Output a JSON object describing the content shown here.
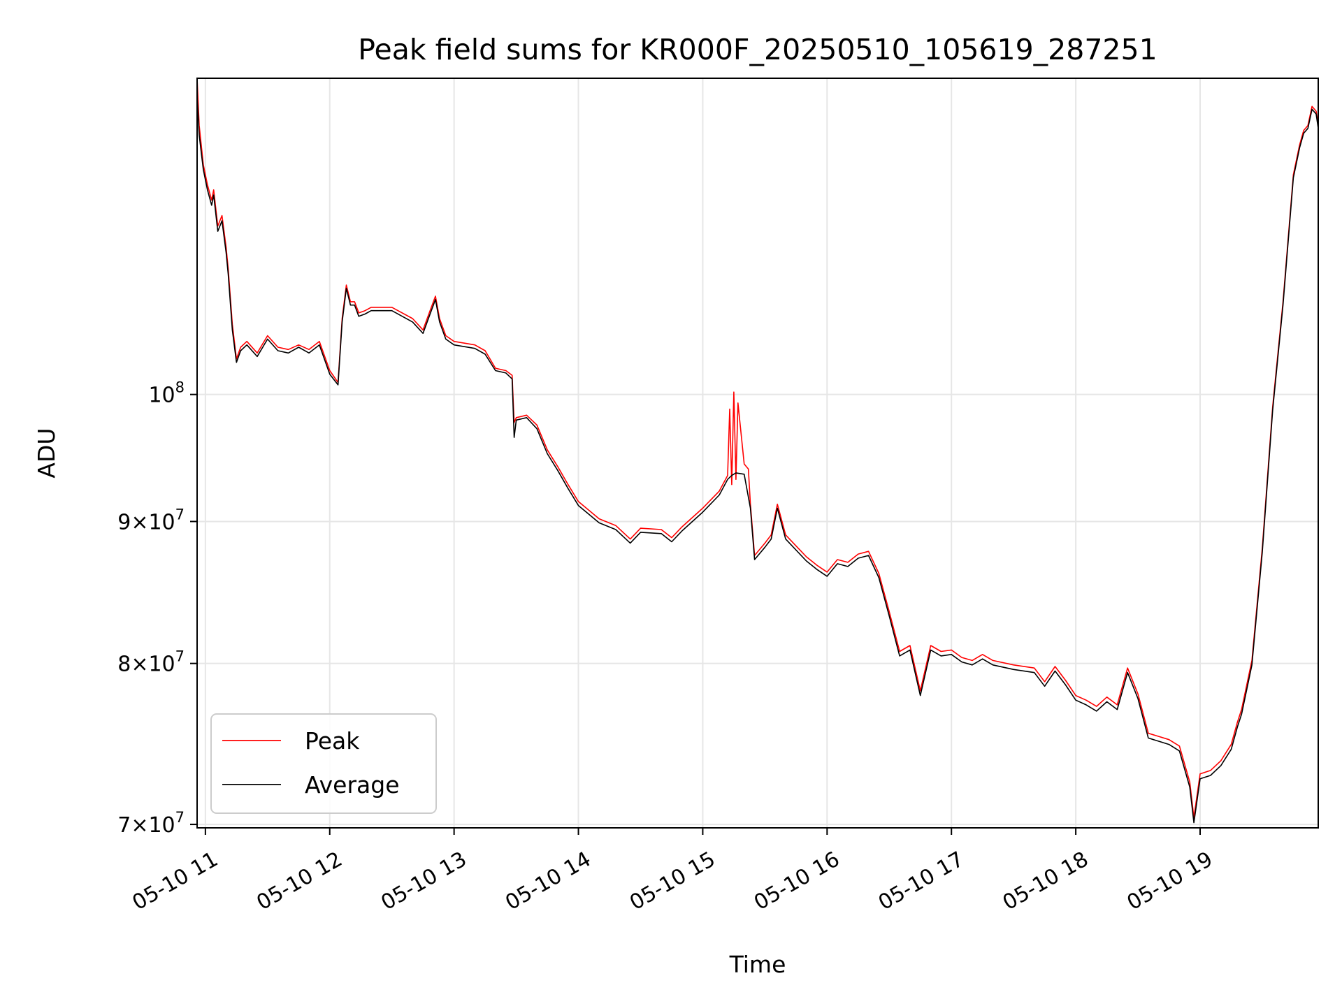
{
  "chart_data": {
    "type": "line",
    "title": "Peak field sums for KR000F_20250510_105619_287251",
    "xlabel": "Time",
    "ylabel": "ADU",
    "x_scale": "time",
    "y_scale": "log",
    "xlim": [
      "05-10 10:56",
      "05-10 19:57"
    ],
    "ylim": [
      69800000,
      130000000
    ],
    "x_ticks": [
      {
        "time": "05-10 11:00",
        "label": "05-10 11"
      },
      {
        "time": "05-10 12:00",
        "label": "05-10 12"
      },
      {
        "time": "05-10 13:00",
        "label": "05-10 13"
      },
      {
        "time": "05-10 14:00",
        "label": "05-10 14"
      },
      {
        "time": "05-10 15:00",
        "label": "05-10 15"
      },
      {
        "time": "05-10 16:00",
        "label": "05-10 16"
      },
      {
        "time": "05-10 17:00",
        "label": "05-10 17"
      },
      {
        "time": "05-10 18:00",
        "label": "05-10 18"
      },
      {
        "time": "05-10 19:00",
        "label": "05-10 19"
      }
    ],
    "y_ticks": [
      {
        "value": 70000000,
        "mant": "7",
        "exp": "7"
      },
      {
        "value": 80000000,
        "mant": "8",
        "exp": "7"
      },
      {
        "value": 90000000,
        "mant": "9",
        "exp": "7"
      },
      {
        "value": 100000000,
        "mant": "",
        "exp": "8"
      }
    ],
    "grid": true,
    "legend_position": "lower-left",
    "series": [
      {
        "name": "Peak",
        "color": "#ff0000",
        "x": [
          "05-10 10:56",
          "05-10 10:57",
          "05-10 10:59",
          "05-10 11:01",
          "05-10 11:03",
          "05-10 11:04",
          "05-10 11:06",
          "05-10 11:08",
          "05-10 11:10",
          "05-10 11:11",
          "05-10 11:13",
          "05-10 11:15",
          "05-10 11:17",
          "05-10 11:20",
          "05-10 11:25",
          "05-10 11:30",
          "05-10 11:35",
          "05-10 11:40",
          "05-10 11:45",
          "05-10 11:50",
          "05-10 11:55",
          "05-10 12:00",
          "05-10 12:04",
          "05-10 12:06",
          "05-10 12:08",
          "05-10 12:10",
          "05-10 12:12",
          "05-10 12:14",
          "05-10 12:17",
          "05-10 12:20",
          "05-10 12:30",
          "05-10 12:40",
          "05-10 12:45",
          "05-10 12:48",
          "05-10 12:51",
          "05-10 12:53",
          "05-10 12:56",
          "05-10 13:00",
          "05-10 13:10",
          "05-10 13:15",
          "05-10 13:20",
          "05-10 13:25",
          "05-10 13:28",
          "05-10 13:29",
          "05-10 13:30",
          "05-10 13:35",
          "05-10 13:40",
          "05-10 13:45",
          "05-10 13:50",
          "05-10 13:55",
          "05-10 14:00",
          "05-10 14:10",
          "05-10 14:18",
          "05-10 14:25",
          "05-10 14:30",
          "05-10 14:40",
          "05-10 14:45",
          "05-10 14:50",
          "05-10 15:00",
          "05-10 15:08",
          "05-10 15:12",
          "05-10 15:13",
          "05-10 15:14",
          "05-10 15:15",
          "05-10 15:16",
          "05-10 15:17",
          "05-10 15:20",
          "05-10 15:22",
          "05-10 15:23",
          "05-10 15:25",
          "05-10 15:30",
          "05-10 15:33",
          "05-10 15:36",
          "05-10 15:40",
          "05-10 15:50",
          "05-10 15:55",
          "05-10 16:00",
          "05-10 16:05",
          "05-10 16:10",
          "05-10 16:15",
          "05-10 16:20",
          "05-10 16:25",
          "05-10 16:30",
          "05-10 16:35",
          "05-10 16:40",
          "05-10 16:45",
          "05-10 16:50",
          "05-10 16:55",
          "05-10 17:00",
          "05-10 17:05",
          "05-10 17:10",
          "05-10 17:15",
          "05-10 17:20",
          "05-10 17:30",
          "05-10 17:40",
          "05-10 17:45",
          "05-10 17:50",
          "05-10 17:55",
          "05-10 18:00",
          "05-10 18:05",
          "05-10 18:10",
          "05-10 18:15",
          "05-10 18:20",
          "05-10 18:25",
          "05-10 18:30",
          "05-10 18:35",
          "05-10 18:40",
          "05-10 18:45",
          "05-10 18:50",
          "05-10 18:55",
          "05-10 18:57",
          "05-10 19:00",
          "05-10 19:05",
          "05-10 19:10",
          "05-10 19:15",
          "05-10 19:18",
          "05-10 19:20",
          "05-10 19:25",
          "05-10 19:30",
          "05-10 19:35",
          "05-10 19:40",
          "05-10 19:45",
          "05-10 19:48",
          "05-10 19:50",
          "05-10 19:52",
          "05-10 19:54",
          "05-10 19:56",
          "05-10 19:57"
        ],
        "y": [
          130000000,
          125000000,
          121000000,
          119000000,
          117500000,
          118500000,
          115000000,
          116000000,
          113000000,
          111000000,
          106000000,
          103000000,
          104000000,
          104500000,
          103500000,
          105000000,
          104000000,
          103800000,
          104200000,
          103800000,
          104500000,
          102000000,
          101000000,
          106500000,
          109500000,
          108000000,
          108000000,
          107000000,
          107200000,
          107500000,
          107500000,
          106500000,
          105500000,
          107000000,
          108500000,
          106500000,
          105000000,
          104500000,
          104200000,
          103700000,
          102200000,
          102000000,
          101600000,
          97700000,
          98100000,
          98300000,
          97500000,
          95500000,
          94200000,
          92800000,
          91500000,
          90200000,
          89700000,
          88700000,
          89500000,
          89400000,
          88800000,
          89600000,
          91000000,
          92300000,
          93500000,
          98800000,
          92800000,
          100200000,
          93200000,
          99300000,
          94400000,
          94000000,
          91300000,
          87500000,
          88400000,
          89000000,
          91300000,
          89000000,
          87400000,
          86800000,
          86300000,
          87200000,
          87000000,
          87600000,
          87800000,
          86200000,
          83500000,
          80800000,
          81200000,
          78200000,
          81200000,
          80800000,
          80900000,
          80400000,
          80200000,
          80600000,
          80200000,
          79900000,
          79700000,
          78800000,
          79800000,
          78900000,
          77900000,
          77600000,
          77200000,
          77800000,
          77300000,
          79700000,
          78000000,
          75500000,
          75300000,
          75100000,
          74700000,
          72500000,
          70400000,
          73000000,
          73200000,
          73800000,
          74800000,
          76200000,
          77000000,
          80200000,
          88000000,
          99000000,
          108000000,
          120000000,
          123000000,
          124500000,
          125000000,
          127000000,
          126500000,
          125000000
        ]
      },
      {
        "name": "Average",
        "color": "#000000",
        "x": [
          "05-10 10:56",
          "05-10 10:57",
          "05-10 10:59",
          "05-10 11:01",
          "05-10 11:03",
          "05-10 11:04",
          "05-10 11:06",
          "05-10 11:08",
          "05-10 11:10",
          "05-10 11:11",
          "05-10 11:13",
          "05-10 11:15",
          "05-10 11:17",
          "05-10 11:20",
          "05-10 11:25",
          "05-10 11:30",
          "05-10 11:35",
          "05-10 11:40",
          "05-10 11:45",
          "05-10 11:50",
          "05-10 11:55",
          "05-10 12:00",
          "05-10 12:04",
          "05-10 12:06",
          "05-10 12:08",
          "05-10 12:10",
          "05-10 12:12",
          "05-10 12:14",
          "05-10 12:17",
          "05-10 12:20",
          "05-10 12:30",
          "05-10 12:40",
          "05-10 12:45",
          "05-10 12:48",
          "05-10 12:51",
          "05-10 12:53",
          "05-10 12:56",
          "05-10 13:00",
          "05-10 13:10",
          "05-10 13:15",
          "05-10 13:20",
          "05-10 13:25",
          "05-10 13:28",
          "05-10 13:29",
          "05-10 13:30",
          "05-10 13:35",
          "05-10 13:40",
          "05-10 13:45",
          "05-10 13:50",
          "05-10 13:55",
          "05-10 14:00",
          "05-10 14:10",
          "05-10 14:18",
          "05-10 14:25",
          "05-10 14:30",
          "05-10 14:40",
          "05-10 14:45",
          "05-10 14:50",
          "05-10 15:00",
          "05-10 15:08",
          "05-10 15:12",
          "05-10 15:14",
          "05-10 15:16",
          "05-10 15:20",
          "05-10 15:23",
          "05-10 15:25",
          "05-10 15:30",
          "05-10 15:33",
          "05-10 15:36",
          "05-10 15:40",
          "05-10 15:50",
          "05-10 15:55",
          "05-10 16:00",
          "05-10 16:05",
          "05-10 16:10",
          "05-10 16:15",
          "05-10 16:20",
          "05-10 16:25",
          "05-10 16:30",
          "05-10 16:35",
          "05-10 16:40",
          "05-10 16:45",
          "05-10 16:50",
          "05-10 16:55",
          "05-10 17:00",
          "05-10 17:05",
          "05-10 17:10",
          "05-10 17:15",
          "05-10 17:20",
          "05-10 17:30",
          "05-10 17:40",
          "05-10 17:45",
          "05-10 17:50",
          "05-10 17:55",
          "05-10 18:00",
          "05-10 18:05",
          "05-10 18:10",
          "05-10 18:15",
          "05-10 18:20",
          "05-10 18:25",
          "05-10 18:30",
          "05-10 18:35",
          "05-10 18:40",
          "05-10 18:45",
          "05-10 18:50",
          "05-10 18:55",
          "05-10 18:57",
          "05-10 19:00",
          "05-10 19:05",
          "05-10 19:10",
          "05-10 19:15",
          "05-10 19:18",
          "05-10 19:20",
          "05-10 19:25",
          "05-10 19:30",
          "05-10 19:35",
          "05-10 19:40",
          "05-10 19:45",
          "05-10 19:48",
          "05-10 19:50",
          "05-10 19:52",
          "05-10 19:54",
          "05-10 19:56",
          "05-10 19:57"
        ],
        "y": [
          128000000,
          124000000,
          120500000,
          118500000,
          117000000,
          118000000,
          114500000,
          115500000,
          112500000,
          110500000,
          105500000,
          102700000,
          103700000,
          104200000,
          103200000,
          104700000,
          103700000,
          103500000,
          104000000,
          103500000,
          104200000,
          101700000,
          100800000,
          106200000,
          109200000,
          107700000,
          107700000,
          106700000,
          106900000,
          107200000,
          107200000,
          106200000,
          105200000,
          106700000,
          108200000,
          106200000,
          104700000,
          104200000,
          103900000,
          103400000,
          102000000,
          101800000,
          101300000,
          96500000,
          97900000,
          98100000,
          97200000,
          95200000,
          93900000,
          92500000,
          91200000,
          89900000,
          89400000,
          88400000,
          89200000,
          89100000,
          88500000,
          89300000,
          90700000,
          92000000,
          93200000,
          93500000,
          93700000,
          93600000,
          91000000,
          87200000,
          88100000,
          88700000,
          91000000,
          88700000,
          87100000,
          86500000,
          86000000,
          86900000,
          86700000,
          87300000,
          87500000,
          85900000,
          83200000,
          80500000,
          80900000,
          77900000,
          80900000,
          80500000,
          80600000,
          80100000,
          79900000,
          80300000,
          79900000,
          79600000,
          79400000,
          78500000,
          79500000,
          78600000,
          77600000,
          77300000,
          76900000,
          77500000,
          77000000,
          79400000,
          77700000,
          75200000,
          75000000,
          74800000,
          74400000,
          72200000,
          70100000,
          72700000,
          72900000,
          73500000,
          74500000,
          75900000,
          76700000,
          79900000,
          87700000,
          98700000,
          107700000,
          119700000,
          122700000,
          124200000,
          124700000,
          126700000,
          126200000,
          124700000
        ]
      }
    ]
  }
}
